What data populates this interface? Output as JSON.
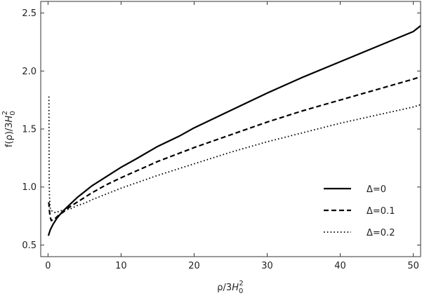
{
  "chart_data": {
    "type": "line",
    "xlabel": {
      "base": "ρ/3",
      "var": "H",
      "sub": "0",
      "sup": "2"
    },
    "ylabel": {
      "base": "f(ρ)/3",
      "var": "H",
      "sub": "0",
      "sup": "2"
    },
    "xlim": [
      -1,
      51
    ],
    "ylim": [
      0.4,
      2.6
    ],
    "xticks": [
      0,
      10,
      20,
      30,
      40,
      50
    ],
    "yticks": [
      0.5,
      1.0,
      1.5,
      2.0,
      2.5
    ],
    "xtick_labels": [
      "0",
      "10",
      "20",
      "30",
      "40",
      "50"
    ],
    "ytick_labels": [
      "0.5",
      "1.0",
      "1.5",
      "2.0",
      "2.5"
    ],
    "grid": false,
    "legend_position": "lower-right",
    "series": [
      {
        "name": "Δ=0",
        "style": "solid",
        "x": [
          0.05,
          0.3,
          0.7,
          1.2,
          2,
          3,
          4,
          5,
          6,
          8,
          10,
          12,
          15,
          18,
          20,
          25,
          30,
          35,
          40,
          45,
          50,
          51
        ],
        "y": [
          0.58,
          0.63,
          0.68,
          0.73,
          0.79,
          0.85,
          0.91,
          0.96,
          1.01,
          1.09,
          1.17,
          1.24,
          1.35,
          1.44,
          1.51,
          1.66,
          1.81,
          1.95,
          2.08,
          2.21,
          2.34,
          2.39
        ]
      },
      {
        "name": "Δ=0.1",
        "style": "dashed",
        "x": [
          0.1,
          0.2,
          0.3,
          0.45,
          0.7,
          1,
          1.5,
          2,
          3,
          4,
          5,
          6,
          8,
          10,
          15,
          20,
          25,
          30,
          35,
          40,
          45,
          50,
          51
        ],
        "y": [
          0.87,
          0.79,
          0.74,
          0.71,
          0.72,
          0.73,
          0.76,
          0.78,
          0.83,
          0.87,
          0.91,
          0.95,
          1.02,
          1.08,
          1.22,
          1.34,
          1.45,
          1.56,
          1.66,
          1.75,
          1.84,
          1.93,
          1.95
        ]
      },
      {
        "name": "Δ=0.2",
        "style": "dotted",
        "x": [
          0.12,
          0.14,
          0.16,
          0.2,
          0.25,
          0.3,
          0.4,
          0.6,
          1,
          1.5,
          2,
          3,
          4,
          5,
          6,
          8,
          10,
          15,
          20,
          25,
          30,
          35,
          40,
          45,
          50,
          51
        ],
        "y": [
          1.78,
          1.35,
          1.05,
          0.92,
          0.86,
          0.82,
          0.8,
          0.79,
          0.78,
          0.79,
          0.8,
          0.81,
          0.84,
          0.86,
          0.89,
          0.94,
          0.99,
          1.1,
          1.2,
          1.3,
          1.39,
          1.47,
          1.55,
          1.62,
          1.69,
          1.71
        ]
      }
    ]
  }
}
